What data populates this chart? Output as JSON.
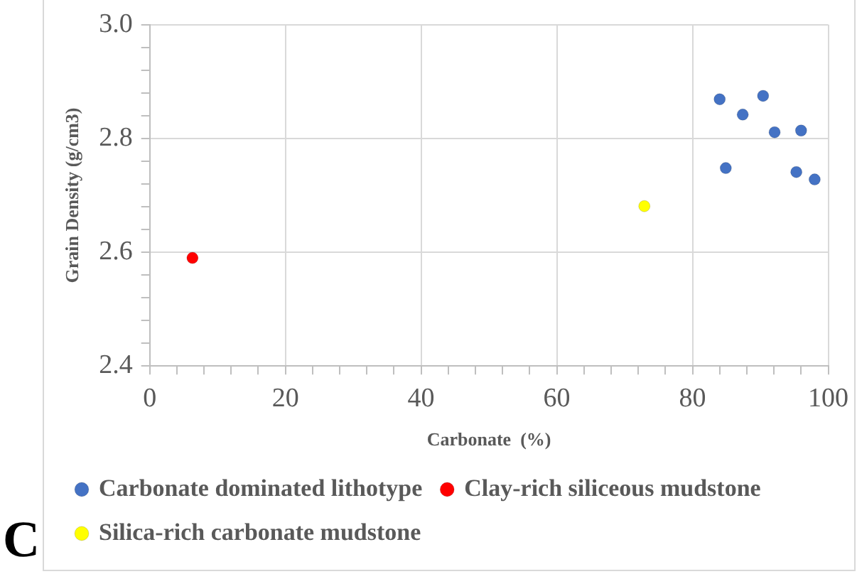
{
  "chart_data": {
    "type": "scatter",
    "xlabel": "Carbonate  (%)",
    "ylabel": "Grain Density (g/cm3)",
    "xlim": [
      0,
      100
    ],
    "ylim": [
      2.4,
      3.0
    ],
    "xticks": [
      0,
      {
        "value": 4,
        "label": null
      },
      {
        "value": 8,
        "label": null
      },
      {
        "value": 12,
        "label": null
      },
      {
        "value": 16,
        "label": null
      },
      20,
      {
        "value": 24,
        "label": null
      },
      {
        "value": 28,
        "label": null
      },
      {
        "value": 32,
        "label": null
      },
      {
        "value": 36,
        "label": null
      },
      40,
      {
        "value": 44,
        "label": null
      },
      {
        "value": 48,
        "label": null
      },
      {
        "value": 52,
        "label": null
      },
      {
        "value": 56,
        "label": null
      },
      60,
      {
        "value": 64,
        "label": null
      },
      {
        "value": 68,
        "label": null
      },
      {
        "value": 72,
        "label": null
      },
      {
        "value": 76,
        "label": null
      },
      80,
      {
        "value": 84,
        "label": null
      },
      {
        "value": 88,
        "label": null
      },
      {
        "value": 92,
        "label": null
      },
      {
        "value": 96,
        "label": null
      },
      100
    ],
    "yticks": [
      {
        "value": 2.4,
        "label": "2.4"
      },
      {
        "value": 2.44,
        "label": null
      },
      {
        "value": 2.48,
        "label": null
      },
      {
        "value": 2.52,
        "label": null
      },
      {
        "value": 2.56,
        "label": null
      },
      {
        "value": 2.6,
        "label": "2.6"
      },
      {
        "value": 2.64,
        "label": null
      },
      {
        "value": 2.68,
        "label": null
      },
      {
        "value": 2.72,
        "label": null
      },
      {
        "value": 2.76,
        "label": null
      },
      {
        "value": 2.8,
        "label": "2.8"
      },
      {
        "value": 2.84,
        "label": null
      },
      {
        "value": 2.88,
        "label": null
      },
      {
        "value": 2.92,
        "label": null
      },
      {
        "value": 2.96,
        "label": null
      },
      {
        "value": 3.0,
        "label": "3.0"
      }
    ],
    "grid": true,
    "legend": "bottom",
    "marker": "circle",
    "series": [
      {
        "name": "Carbonate dominated lithotype",
        "color": "#4472c4",
        "x": [
          84.0,
          87.4,
          90.4,
          92.1,
          96.0,
          84.9,
          95.3,
          98.0
        ],
        "values": [
          2.869,
          2.842,
          2.875,
          2.811,
          2.814,
          2.748,
          2.741,
          2.728
        ]
      },
      {
        "name": "Clay-rich siliceous mudstone",
        "color": "#ff0000",
        "x": [
          6.3
        ],
        "values": [
          2.59
        ]
      },
      {
        "name": "Silica-rich carbonate mudstone",
        "color": "#ffff00",
        "x": [
          72.9
        ],
        "values": [
          2.681
        ]
      }
    ],
    "annotations": [
      "C"
    ]
  }
}
